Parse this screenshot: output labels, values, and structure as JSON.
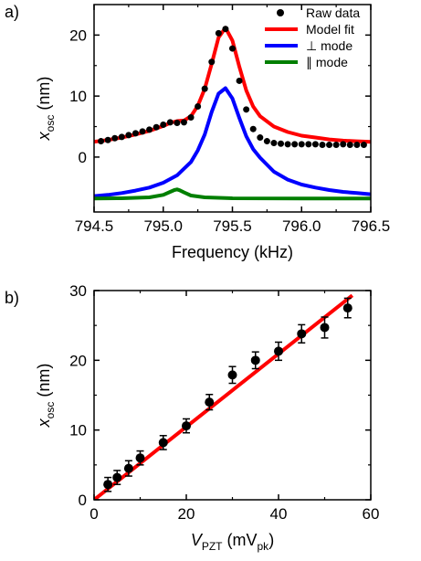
{
  "chart_data": [
    {
      "panel_label": "a)",
      "type": "line",
      "xlabel": "Frequency (kHz)",
      "ylabel": "x",
      "ylabel_sub": "osc",
      "ylabel_unit": " (nm)",
      "xlim": [
        794.5,
        796.5
      ],
      "ylim": [
        -9,
        25
      ],
      "xticks": [
        794.5,
        795.0,
        795.5,
        796.0,
        796.5
      ],
      "xtick_labels": [
        "794.5",
        "795.0",
        "795.5",
        "796.0",
        "796.5"
      ],
      "yticks": [
        0,
        10,
        20
      ],
      "ytick_labels": [
        "0",
        "10",
        "20"
      ],
      "legend_position": "top-right",
      "legend": [
        {
          "label": "Raw data",
          "kind": "marker",
          "color": "#000000"
        },
        {
          "label": "Model fit",
          "kind": "line",
          "color": "#ff0000"
        },
        {
          "label": "⊥ mode",
          "kind": "line",
          "color": "#0000ff"
        },
        {
          "label": "∥ mode",
          "kind": "line",
          "color": "#007f00"
        }
      ],
      "series": [
        {
          "name": "Raw data",
          "type": "scatter",
          "color": "#000000",
          "x": [
            794.55,
            794.6,
            794.65,
            794.7,
            794.75,
            794.8,
            794.85,
            794.9,
            794.95,
            795.0,
            795.05,
            795.1,
            795.15,
            795.2,
            795.25,
            795.3,
            795.35,
            795.4,
            795.45,
            795.5,
            795.55,
            795.6,
            795.65,
            795.7,
            795.75,
            795.8,
            795.85,
            795.9,
            795.95,
            796.0,
            796.05,
            796.1,
            796.15,
            796.2,
            796.25,
            796.3,
            796.35,
            796.4,
            796.45
          ],
          "y": [
            2.6,
            2.8,
            3.1,
            3.3,
            3.6,
            3.9,
            4.2,
            4.5,
            4.9,
            5.3,
            5.7,
            5.6,
            5.7,
            6.5,
            8.3,
            11.2,
            15.6,
            20.3,
            21.0,
            17.8,
            12.5,
            7.8,
            4.6,
            3.2,
            2.6,
            2.3,
            2.2,
            2.1,
            2.1,
            2.1,
            2.1,
            2.1,
            2.0,
            2.0,
            2.0,
            2.1,
            2.0,
            2.0,
            2.0
          ]
        },
        {
          "name": "Model fit",
          "type": "line",
          "color": "#ff0000",
          "x": [
            794.5,
            794.6,
            794.7,
            794.8,
            794.9,
            795.0,
            795.05,
            795.1,
            795.15,
            795.2,
            795.25,
            795.3,
            795.35,
            795.4,
            795.45,
            795.5,
            795.55,
            795.6,
            795.65,
            795.7,
            795.8,
            795.9,
            796.0,
            796.1,
            796.2,
            796.3,
            796.4,
            796.5
          ],
          "y": [
            2.5,
            2.8,
            3.2,
            3.7,
            4.3,
            5.1,
            5.6,
            5.9,
            6.0,
            6.7,
            8.4,
            11.2,
            15.3,
            19.6,
            21.2,
            19.1,
            14.8,
            10.9,
            8.3,
            6.7,
            5.0,
            4.1,
            3.5,
            3.2,
            2.9,
            2.7,
            2.6,
            2.5
          ]
        },
        {
          "name": "⊥ mode",
          "type": "line",
          "color": "#0000ff",
          "x": [
            794.5,
            794.6,
            794.7,
            794.8,
            794.9,
            795.0,
            795.1,
            795.2,
            795.25,
            795.3,
            795.35,
            795.4,
            795.45,
            795.5,
            795.55,
            795.6,
            795.65,
            795.7,
            795.8,
            795.9,
            796.0,
            796.1,
            796.2,
            796.3,
            796.4,
            796.5
          ],
          "y": [
            -6.4,
            -6.2,
            -5.9,
            -5.5,
            -5.0,
            -4.2,
            -3.0,
            -0.8,
            1.1,
            3.7,
            7.4,
            10.4,
            11.3,
            9.6,
            6.4,
            3.4,
            1.3,
            -0.1,
            -2.4,
            -3.7,
            -4.5,
            -5.0,
            -5.4,
            -5.7,
            -5.9,
            -6.1
          ]
        },
        {
          "name": "∥ mode",
          "type": "line",
          "color": "#007f00",
          "x": [
            794.5,
            794.7,
            794.9,
            795.0,
            795.05,
            795.08,
            795.1,
            795.12,
            795.15,
            795.2,
            795.3,
            795.5,
            796.0,
            796.5
          ],
          "y": [
            -6.8,
            -6.75,
            -6.6,
            -6.2,
            -5.7,
            -5.4,
            -5.3,
            -5.45,
            -5.8,
            -6.3,
            -6.6,
            -6.75,
            -6.8,
            -6.8
          ]
        }
      ]
    },
    {
      "panel_label": "b)",
      "type": "scatter",
      "xlabel": "V",
      "xlabel_sub": "PZT",
      "xlabel_unit_pre": " (mV",
      "xlabel_unit_sub": "pk",
      "xlabel_unit_post": ")",
      "ylabel": "x",
      "ylabel_sub": "osc",
      "ylabel_unit": " (nm)",
      "xlim": [
        0,
        60
      ],
      "ylim": [
        0,
        30
      ],
      "xticks": [
        0,
        20,
        40,
        60
      ],
      "xtick_labels": [
        "0",
        "20",
        "40",
        "60"
      ],
      "yticks": [
        0,
        10,
        20,
        30
      ],
      "ytick_labels": [
        "0",
        "10",
        "20",
        "30"
      ],
      "series": [
        {
          "type": "scatter",
          "color": "#000000",
          "x": [
            3,
            5,
            7.5,
            10,
            15,
            20,
            25,
            30,
            35,
            40,
            45,
            50,
            55
          ],
          "y": [
            2.2,
            3.2,
            4.5,
            6.0,
            8.2,
            10.6,
            14.0,
            17.9,
            20.0,
            21.3,
            23.8,
            24.7,
            27.5
          ],
          "yerr": [
            1.0,
            1.0,
            1.1,
            1.0,
            1.0,
            1.0,
            1.1,
            1.2,
            1.2,
            1.3,
            1.3,
            1.5,
            1.4
          ]
        },
        {
          "type": "line",
          "color": "#ff0000",
          "x": [
            0,
            56
          ],
          "y": [
            0,
            29.3
          ]
        }
      ]
    }
  ]
}
